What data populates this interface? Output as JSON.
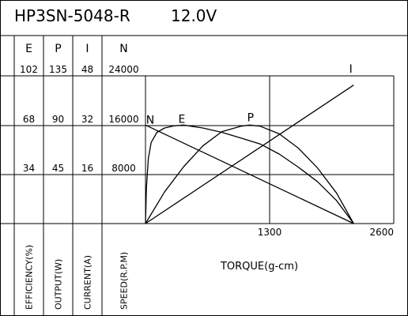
{
  "chart_data": {
    "type": "line",
    "title": "HP3SN-5048-R",
    "voltage": "12.0V",
    "xlabel": "TORQUE(g-cm)",
    "x_ticks": [
      "1300",
      "2600"
    ],
    "xlim": [
      0,
      2600
    ],
    "x_stall_torque": 2180,
    "columns": [
      {
        "key": "E",
        "header": "E",
        "label": "EFFICIENCY(%)",
        "ticks": [
          "102",
          "68",
          "34"
        ],
        "max": 102
      },
      {
        "key": "P",
        "header": "P",
        "label": "OUTPUT(W)",
        "ticks": [
          "135",
          "90",
          "45"
        ],
        "max": 135
      },
      {
        "key": "I",
        "header": "I",
        "label": "CURRENT(A)",
        "ticks": [
          "48",
          "32",
          "16"
        ],
        "max": 48
      },
      {
        "key": "N",
        "header": "N",
        "label": "SPEED(R.P.M)",
        "ticks": [
          "24000",
          "16000",
          "8000"
        ],
        "max": 24000
      }
    ],
    "series": [
      {
        "name": "N",
        "x": [
          0,
          2180
        ],
        "y": [
          16000,
          0
        ]
      },
      {
        "name": "I",
        "x": [
          0,
          2180
        ],
        "y": [
          0,
          45
        ]
      },
      {
        "name": "P",
        "x": [
          0,
          200,
          400,
          600,
          800,
          1000,
          1090,
          1200,
          1400,
          1600,
          1800,
          2000,
          2180
        ],
        "y": [
          0,
          29,
          52,
          71,
          84,
          89,
          90,
          89,
          82,
          69,
          51,
          28,
          0
        ]
      },
      {
        "name": "E",
        "x": [
          0,
          10,
          30,
          60,
          120,
          200,
          300,
          400,
          500,
          600,
          800,
          1000,
          1200,
          1400,
          1600,
          1800,
          2000,
          2180
        ],
        "y": [
          0,
          25,
          45,
          56,
          63,
          66,
          67.5,
          68,
          67,
          66,
          63,
          59,
          55,
          48,
          39,
          29,
          16,
          0
        ]
      }
    ],
    "series_labels": [
      "N",
      "E",
      "P",
      "I"
    ],
    "grid": true
  }
}
